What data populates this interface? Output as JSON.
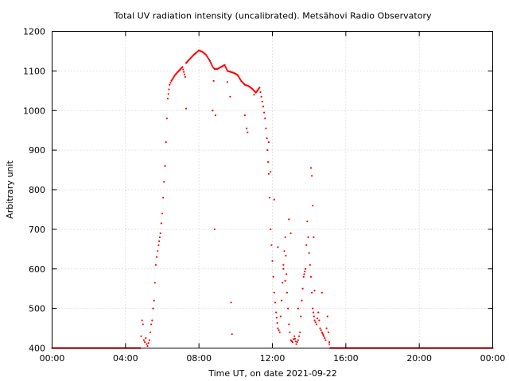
{
  "chart_data": {
    "type": "scatter",
    "title": "Total UV radiation intensity (uncalibrated). Metsähovi Radio Observatory",
    "xlabel": "Time UT, on date 2021-09-22",
    "ylabel": "Arbitrary unit",
    "xlim": [
      0,
      24
    ],
    "ylim": [
      400,
      1200
    ],
    "x_ticks": [
      {
        "value": 0,
        "label": "00:00"
      },
      {
        "value": 4,
        "label": "04:00"
      },
      {
        "value": 8,
        "label": "08:00"
      },
      {
        "value": 12,
        "label": "12:00"
      },
      {
        "value": 16,
        "label": "16:00"
      },
      {
        "value": 20,
        "label": "20:00"
      },
      {
        "value": 24,
        "label": "00:00"
      }
    ],
    "y_ticks": [
      {
        "value": 400,
        "label": "400"
      },
      {
        "value": 500,
        "label": "500"
      },
      {
        "value": 600,
        "label": "600"
      },
      {
        "value": 700,
        "label": "700"
      },
      {
        "value": 800,
        "label": "800"
      },
      {
        "value": 900,
        "label": "900"
      },
      {
        "value": 1000,
        "label": "1000"
      },
      {
        "value": 1100,
        "label": "1100"
      },
      {
        "value": 1200,
        "label": "1200"
      }
    ],
    "grid": true,
    "series": [
      {
        "color": "#ff0000",
        "points": [
          [
            0,
            400
          ],
          [
            4.8,
            400
          ],
          [
            4.85,
            430
          ],
          [
            4.9,
            470
          ],
          [
            4.95,
            460
          ],
          [
            5.0,
            420
          ],
          [
            5.05,
            415
          ],
          [
            5.1,
            425
          ],
          [
            5.15,
            410
          ],
          [
            5.2,
            405
          ],
          [
            5.3,
            420
          ],
          [
            5.35,
            440
          ],
          [
            5.4,
            460
          ],
          [
            5.45,
            470
          ],
          [
            5.5,
            500
          ],
          [
            5.55,
            520
          ],
          [
            5.6,
            565
          ],
          [
            5.65,
            610
          ],
          [
            5.7,
            630
          ],
          [
            5.8,
            660
          ],
          [
            5.9,
            690
          ],
          [
            6.0,
            740
          ],
          [
            6.05,
            780
          ],
          [
            6.1,
            820
          ],
          [
            6.15,
            860
          ],
          [
            6.2,
            920
          ],
          [
            6.25,
            980
          ],
          [
            6.3,
            1030
          ],
          [
            6.4,
            1065
          ],
          [
            6.5,
            1075
          ],
          [
            6.7,
            1090
          ],
          [
            6.9,
            1100
          ],
          [
            7.1,
            1110
          ],
          [
            7.25,
            1085
          ],
          [
            7.3,
            1120
          ],
          [
            7.5,
            1130
          ],
          [
            7.7,
            1140
          ],
          [
            7.9,
            1148
          ],
          [
            8.0,
            1152
          ],
          [
            8.2,
            1148
          ],
          [
            8.4,
            1140
          ],
          [
            8.6,
            1125
          ],
          [
            8.75,
            1110
          ],
          [
            8.85,
            1105
          ],
          [
            9.0,
            1105
          ],
          [
            9.2,
            1110
          ],
          [
            9.4,
            1115
          ],
          [
            9.55,
            1100
          ],
          [
            9.7,
            1098
          ],
          [
            9.9,
            1095
          ],
          [
            10.1,
            1090
          ],
          [
            10.3,
            1075
          ],
          [
            10.5,
            1065
          ],
          [
            10.7,
            1062
          ],
          [
            10.9,
            1055
          ],
          [
            11.1,
            1045
          ],
          [
            11.3,
            1058
          ],
          [
            11.4,
            1035
          ],
          [
            11.5,
            1010
          ],
          [
            11.6,
            980
          ],
          [
            11.7,
            930
          ],
          [
            11.8,
            840
          ],
          [
            11.85,
            780
          ],
          [
            11.9,
            700
          ],
          [
            12.0,
            620
          ],
          [
            12.1,
            540
          ],
          [
            12.2,
            490
          ],
          [
            12.3,
            450
          ],
          [
            12.4,
            440
          ],
          [
            12.5,
            520
          ],
          [
            12.6,
            610
          ],
          [
            12.7,
            680
          ],
          [
            12.8,
            540
          ],
          [
            12.9,
            460
          ],
          [
            13.0,
            420
          ],
          [
            13.1,
            415
          ],
          [
            13.2,
            430
          ],
          [
            13.3,
            410
          ],
          [
            13.4,
            420
          ],
          [
            13.5,
            440
          ],
          [
            13.6,
            520
          ],
          [
            13.7,
            580
          ],
          [
            13.8,
            600
          ],
          [
            13.9,
            720
          ],
          [
            14.0,
            640
          ],
          [
            14.1,
            580
          ],
          [
            14.2,
            500
          ],
          [
            14.3,
            470
          ],
          [
            14.4,
            460
          ],
          [
            14.5,
            490
          ],
          [
            14.6,
            450
          ],
          [
            14.7,
            440
          ],
          [
            14.8,
            430
          ],
          [
            14.9,
            420
          ],
          [
            15.0,
            480
          ],
          [
            15.05,
            440
          ],
          [
            15.1,
            410
          ],
          [
            15.15,
            400
          ],
          [
            24,
            400
          ]
        ],
        "outliers": [
          [
            7.3,
            1005
          ],
          [
            8.75,
            1000
          ],
          [
            8.8,
            1075
          ],
          [
            8.85,
            700
          ],
          [
            8.9,
            988
          ],
          [
            9.55,
            1072
          ],
          [
            9.7,
            1035
          ],
          [
            9.75,
            515
          ],
          [
            9.8,
            435
          ],
          [
            10.5,
            988
          ],
          [
            10.6,
            955
          ],
          [
            10.65,
            945
          ],
          [
            11.0,
            1040
          ],
          [
            11.8,
            920
          ],
          [
            11.9,
            845
          ],
          [
            12.1,
            775
          ],
          [
            12.3,
            655
          ],
          [
            12.6,
            600
          ],
          [
            12.7,
            570
          ],
          [
            12.9,
            725
          ],
          [
            13.0,
            690
          ],
          [
            13.4,
            500
          ],
          [
            14.1,
            855
          ],
          [
            14.15,
            835
          ],
          [
            14.2,
            760
          ],
          [
            14.25,
            680
          ],
          [
            14.3,
            545
          ],
          [
            14.7,
            540
          ],
          [
            15.1,
            415
          ]
        ]
      }
    ]
  }
}
